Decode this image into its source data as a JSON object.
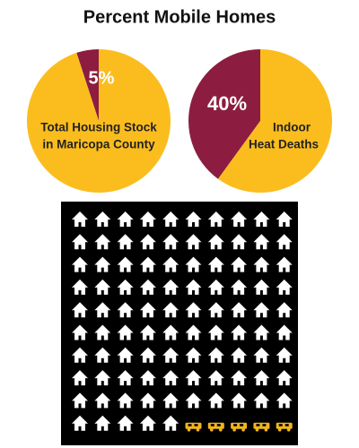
{
  "title": "Percent Mobile Homes",
  "chart_data": [
    {
      "type": "pie",
      "values": [
        5,
        95
      ],
      "value_labels": [
        "5%",
        null
      ],
      "colors": [
        "#8c1d40",
        "#fbbd1e"
      ],
      "label": [
        "Total Housing Stock",
        "in Maricopa County"
      ]
    },
    {
      "type": "pie",
      "values": [
        40,
        60
      ],
      "value_labels": [
        "40%",
        null
      ],
      "colors": [
        "#8c1d40",
        "#fbbd1e"
      ],
      "label": [
        "Indoor",
        "Heat Deaths"
      ]
    },
    {
      "type": "waffle",
      "values": [
        95,
        5
      ],
      "colors": [
        "#ffffff",
        "#f2b51d"
      ]
    }
  ]
}
